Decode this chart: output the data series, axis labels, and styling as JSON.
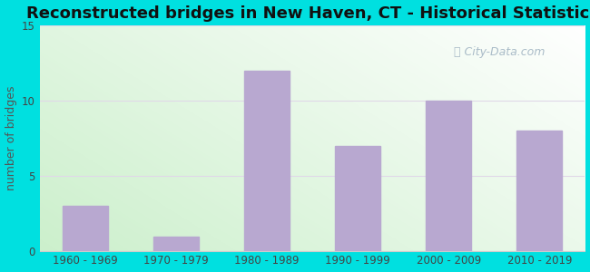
{
  "categories": [
    "1960 - 1969",
    "1970 - 1979",
    "1980 - 1989",
    "1990 - 1999",
    "2000 - 2009",
    "2010 - 2019"
  ],
  "values": [
    3,
    1,
    12,
    7,
    10,
    8
  ],
  "bar_color": "#b8a8d0",
  "bar_edge_color": "#b8a8d0",
  "title": "Reconstructed bridges in New Haven, CT - Historical Statistics",
  "ylabel": "number of bridges",
  "ylim": [
    0,
    15
  ],
  "yticks": [
    0,
    5,
    10,
    15
  ],
  "outer_bg_color": "#00e0e0",
  "grid_color": "#e0d8e8",
  "title_fontsize": 13,
  "ylabel_fontsize": 9,
  "tick_fontsize": 8.5,
  "watermark_text": "City-Data.com",
  "watermark_color": "#aabcc8"
}
